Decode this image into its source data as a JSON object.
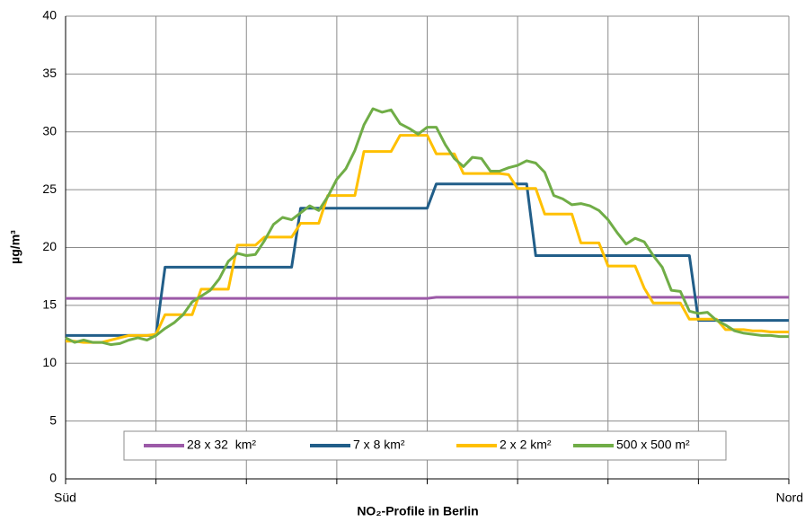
{
  "chart_data": {
    "type": "line",
    "x_label": "NO₂-Profile in Berlin",
    "y_label": "µg/m³",
    "categories": [
      "Süd",
      null,
      null,
      null,
      null,
      null,
      null,
      null,
      null,
      null,
      null,
      null,
      null,
      null,
      null,
      null,
      null,
      null,
      null,
      null,
      null,
      null,
      null,
      null,
      null,
      null,
      null,
      null,
      null,
      null,
      null,
      null,
      null,
      null,
      null,
      null,
      null,
      null,
      null,
      null,
      null,
      null,
      null,
      null,
      null,
      null,
      null,
      null,
      null,
      null,
      null,
      null,
      null,
      null,
      null,
      null,
      null,
      null,
      null,
      null,
      null,
      null,
      null,
      null,
      null,
      null,
      null,
      null,
      null,
      null,
      null,
      null,
      null,
      null,
      null,
      null,
      null,
      null,
      null,
      null,
      "Nord"
    ],
    "x_grid_every": 10,
    "ylim": [
      0,
      40
    ],
    "yticks": [
      0,
      5,
      10,
      15,
      20,
      25,
      30,
      35,
      40
    ],
    "grid": true,
    "legend": "bottom",
    "series": [
      {
        "name": "28 x 32  km²",
        "color": "#9c5aa8",
        "values": [
          15.6,
          15.6,
          15.6,
          15.6,
          15.6,
          15.6,
          15.6,
          15.6,
          15.6,
          15.6,
          15.6,
          15.6,
          15.6,
          15.6,
          15.6,
          15.6,
          15.6,
          15.6,
          15.6,
          15.6,
          15.6,
          15.6,
          15.6,
          15.6,
          15.6,
          15.6,
          15.6,
          15.6,
          15.6,
          15.6,
          15.6,
          15.6,
          15.6,
          15.6,
          15.6,
          15.6,
          15.6,
          15.6,
          15.6,
          15.6,
          15.6,
          15.7,
          15.7,
          15.7,
          15.7,
          15.7,
          15.7,
          15.7,
          15.7,
          15.7,
          15.7,
          15.7,
          15.7,
          15.7,
          15.7,
          15.7,
          15.7,
          15.7,
          15.7,
          15.7,
          15.7,
          15.7,
          15.7,
          15.7,
          15.7,
          15.7,
          15.7,
          15.7,
          15.7,
          15.7,
          15.7,
          15.7,
          15.7,
          15.7,
          15.7,
          15.7,
          15.7,
          15.7,
          15.7,
          15.7,
          15.7
        ]
      },
      {
        "name": "7 x 8 km²",
        "color": "#215e89",
        "values": [
          12.4,
          12.4,
          12.4,
          12.4,
          12.4,
          12.4,
          12.4,
          12.4,
          12.4,
          12.4,
          12.4,
          18.3,
          18.3,
          18.3,
          18.3,
          18.3,
          18.3,
          18.3,
          18.3,
          18.3,
          18.3,
          18.3,
          18.3,
          18.3,
          18.3,
          18.3,
          23.4,
          23.4,
          23.4,
          23.4,
          23.4,
          23.4,
          23.4,
          23.4,
          23.4,
          23.4,
          23.4,
          23.4,
          23.4,
          23.4,
          23.4,
          25.5,
          25.5,
          25.5,
          25.5,
          25.5,
          25.5,
          25.5,
          25.5,
          25.5,
          25.5,
          25.5,
          19.3,
          19.3,
          19.3,
          19.3,
          19.3,
          19.3,
          19.3,
          19.3,
          19.3,
          19.3,
          19.3,
          19.3,
          19.3,
          19.3,
          19.3,
          19.3,
          19.3,
          19.3,
          13.7,
          13.7,
          13.7,
          13.7,
          13.7,
          13.7,
          13.7,
          13.7,
          13.7,
          13.7,
          13.7
        ]
      },
      {
        "name": "2 x 2 km²",
        "color": "#ffc000",
        "values": [
          11.9,
          11.9,
          11.8,
          11.8,
          11.8,
          12.0,
          12.2,
          12.4,
          12.4,
          12.4,
          12.5,
          14.2,
          14.2,
          14.2,
          14.2,
          16.4,
          16.4,
          16.4,
          16.4,
          20.2,
          20.2,
          20.2,
          20.9,
          20.9,
          20.9,
          20.9,
          22.1,
          22.1,
          22.1,
          24.5,
          24.5,
          24.5,
          24.5,
          28.3,
          28.3,
          28.3,
          28.3,
          29.7,
          29.7,
          29.7,
          29.7,
          28.1,
          28.1,
          28.1,
          26.4,
          26.4,
          26.4,
          26.4,
          26.4,
          26.3,
          25.1,
          25.1,
          25.1,
          22.9,
          22.9,
          22.9,
          22.9,
          20.4,
          20.4,
          20.4,
          18.4,
          18.4,
          18.4,
          18.4,
          16.5,
          15.2,
          15.2,
          15.2,
          15.2,
          13.8,
          13.8,
          13.8,
          13.8,
          12.9,
          12.9,
          12.9,
          12.8,
          12.8,
          12.7,
          12.7,
          12.7
        ]
      },
      {
        "name": "500 x 500 m²",
        "color": "#70ad47",
        "values": [
          12.2,
          11.8,
          12.0,
          11.8,
          11.8,
          11.6,
          11.7,
          12.0,
          12.2,
          12.0,
          12.4,
          13.0,
          13.5,
          14.2,
          15.3,
          15.8,
          16.3,
          17.3,
          18.8,
          19.5,
          19.3,
          19.4,
          20.6,
          22.0,
          22.6,
          22.4,
          23.0,
          23.6,
          23.2,
          24.4,
          25.9,
          26.8,
          28.4,
          30.6,
          32.0,
          31.7,
          31.9,
          30.7,
          30.3,
          29.8,
          30.4,
          30.4,
          28.9,
          27.7,
          27.0,
          27.8,
          27.7,
          26.6,
          26.6,
          26.9,
          27.1,
          27.5,
          27.3,
          26.5,
          24.5,
          24.2,
          23.7,
          23.8,
          23.6,
          23.2,
          22.4,
          21.3,
          20.3,
          20.8,
          20.5,
          19.3,
          18.3,
          16.3,
          16.2,
          14.5,
          14.3,
          14.4,
          13.7,
          13.3,
          12.8,
          12.6,
          12.5,
          12.4,
          12.4,
          12.3,
          12.3
        ]
      }
    ]
  }
}
